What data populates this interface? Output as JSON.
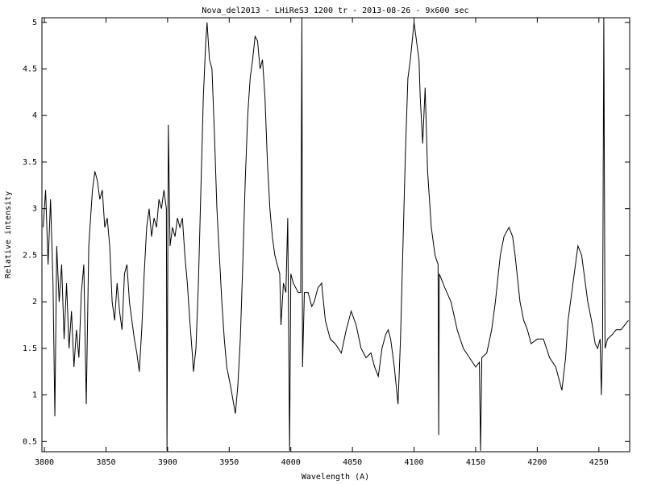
{
  "chart_data": {
    "type": "line",
    "title": "Nova_del2013 - LHiReS3 1200 tr  - 2013-08-26 - 9x600 sec",
    "x_label": "Wavelength (A)",
    "y_label": "Relative intensity",
    "xlim": [
      3798,
      4275
    ],
    "ylim": [
      0.39,
      5.05
    ],
    "xticks": [
      3800,
      3850,
      3900,
      3950,
      4000,
      4050,
      4100,
      4150,
      4200,
      4250
    ],
    "yticks": [
      0.5,
      1,
      1.5,
      2,
      2.5,
      3,
      3.5,
      4,
      4.5,
      5
    ],
    "grid": false,
    "x": [
      3799,
      3801,
      3803,
      3805,
      3807,
      3808.5,
      3810,
      3812,
      3814,
      3816,
      3818,
      3820,
      3822,
      3824,
      3826,
      3828,
      3830,
      3832,
      3834,
      3836,
      3839,
      3841,
      3843,
      3845,
      3847,
      3849,
      3851,
      3853,
      3855,
      3857,
      3859,
      3861,
      3863,
      3865,
      3867,
      3869,
      3871,
      3873,
      3875,
      3877,
      3879,
      3881,
      3883,
      3885,
      3887,
      3889,
      3891,
      3893,
      3895,
      3897,
      3899,
      3899.5,
      3900.6,
      3902,
      3904,
      3906,
      3908,
      3910,
      3912,
      3914,
      3916,
      3918,
      3920,
      3921,
      3923,
      3925,
      3927,
      3929,
      3931,
      3932,
      3934,
      3936,
      3938,
      3940,
      3942,
      3944,
      3946,
      3948,
      3951,
      3955,
      3957,
      3959,
      3961,
      3963,
      3965,
      3967,
      3969,
      3971,
      3973,
      3975,
      3977,
      3979,
      3981,
      3983,
      3985,
      3987,
      3989,
      3991,
      3992,
      3994,
      3996,
      3997.5,
      3999,
      4000,
      4002,
      4004,
      4006,
      4008,
      4009,
      4009.5,
      4011,
      4014,
      4017,
      4019,
      4022,
      4025,
      4028,
      4032,
      4036,
      4041,
      4045,
      4049,
      4053,
      4057,
      4061,
      4065,
      4068,
      4071,
      4074,
      4077,
      4079,
      4081,
      4084,
      4087,
      4089,
      4091,
      4093,
      4095,
      4097,
      4100,
      4102,
      4104,
      4105,
      4107,
      4109,
      4111,
      4114,
      4117,
      4119.5,
      4120,
      4120.5,
      4125,
      4130,
      4135,
      4140,
      4145,
      4150,
      4153,
      4154,
      4155,
      4159,
      4163,
      4166,
      4170,
      4173,
      4177,
      4180,
      4182,
      4186,
      4189,
      4192,
      4195,
      4200,
      4205,
      4210,
      4215,
      4220,
      4223,
      4225,
      4228,
      4231,
      4233,
      4236,
      4238,
      4241,
      4244,
      4247,
      4249,
      4251,
      4252,
      4253,
      4254,
      4255,
      4257,
      4261,
      4264,
      4268,
      4271,
      4274
    ],
    "series": [
      {
        "color": "#000000",
        "values": [
          2.8,
          3.2,
          2.4,
          3.1,
          2.2,
          0.77,
          2.6,
          2.0,
          2.4,
          1.6,
          2.2,
          1.5,
          1.9,
          1.3,
          1.7,
          1.4,
          2.1,
          2.4,
          0.9,
          2.6,
          3.2,
          3.4,
          3.3,
          3.1,
          3.2,
          2.8,
          2.9,
          2.6,
          2.0,
          1.8,
          2.2,
          1.9,
          1.7,
          2.3,
          2.4,
          2.0,
          1.8,
          1.6,
          1.45,
          1.25,
          1.7,
          2.3,
          2.8,
          3.0,
          2.7,
          2.9,
          2.8,
          3.1,
          3.0,
          3.2,
          3.0,
          0.4,
          3.9,
          2.6,
          2.8,
          2.7,
          2.9,
          2.8,
          2.9,
          2.5,
          2.2,
          1.8,
          1.45,
          1.25,
          1.5,
          2.2,
          3.2,
          4.2,
          4.8,
          5.0,
          4.6,
          4.5,
          3.8,
          3.0,
          2.5,
          2.0,
          1.6,
          1.3,
          1.1,
          0.8,
          1.1,
          1.6,
          2.4,
          3.3,
          4.0,
          4.4,
          4.6,
          4.85,
          4.8,
          4.5,
          4.6,
          4.2,
          3.5,
          3.0,
          2.7,
          2.5,
          2.4,
          2.3,
          1.75,
          2.2,
          2.1,
          2.9,
          0.4,
          2.3,
          2.2,
          2.15,
          2.1,
          2.1,
          5.05,
          1.3,
          2.1,
          2.1,
          1.95,
          2.0,
          2.15,
          2.2,
          1.8,
          1.6,
          1.55,
          1.45,
          1.7,
          1.9,
          1.75,
          1.5,
          1.4,
          1.45,
          1.3,
          1.2,
          1.5,
          1.65,
          1.7,
          1.6,
          1.3,
          0.9,
          1.6,
          2.6,
          3.6,
          4.4,
          4.6,
          5.0,
          4.8,
          4.6,
          4.2,
          3.7,
          4.3,
          3.4,
          2.8,
          2.5,
          2.4,
          0.57,
          2.3,
          2.15,
          2.0,
          1.7,
          1.5,
          1.4,
          1.3,
          1.35,
          0.4,
          1.4,
          1.45,
          1.7,
          2.0,
          2.5,
          2.7,
          2.8,
          2.7,
          2.5,
          2.0,
          1.8,
          1.7,
          1.55,
          1.6,
          1.6,
          1.4,
          1.3,
          1.05,
          1.4,
          1.8,
          2.1,
          2.4,
          2.6,
          2.5,
          2.3,
          2.0,
          1.8,
          1.55,
          1.5,
          1.6,
          1.0,
          1.6,
          5.05,
          1.5,
          1.6,
          1.65,
          1.7,
          1.7,
          1.75,
          1.8
        ]
      }
    ]
  }
}
